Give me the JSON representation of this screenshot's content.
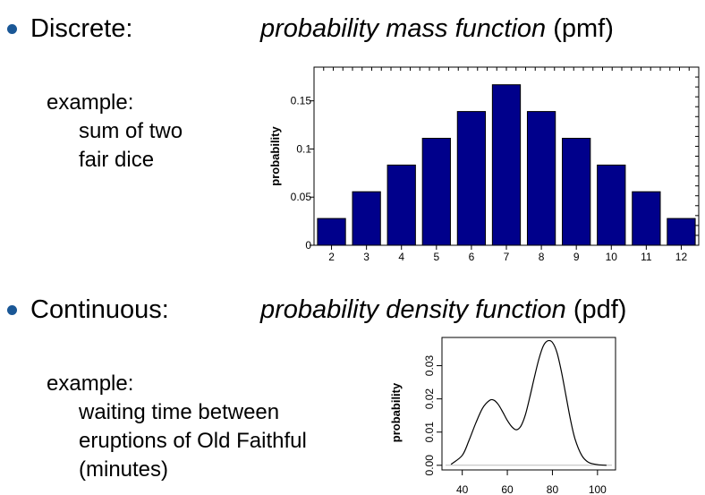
{
  "sections": {
    "discrete": {
      "heading": "Discrete:",
      "function_name": "probability mass function",
      "function_abbr": "(pmf)",
      "example_label": "example:",
      "example_lines": [
        "sum of two",
        "fair dice"
      ]
    },
    "continuous": {
      "heading": "Continuous:",
      "function_name": "probability density function",
      "function_abbr": "(pdf)",
      "example_label": "example:",
      "example_lines": [
        "waiting time between",
        "eruptions of Old Faithful",
        "(minutes)"
      ]
    }
  },
  "colors": {
    "bullet": "#1a5796",
    "bar_fill": "#00008b",
    "line": "#000000"
  },
  "chart_data": [
    {
      "type": "bar",
      "categories": [
        "2",
        "3",
        "4",
        "5",
        "6",
        "7",
        "8",
        "9",
        "10",
        "11",
        "12"
      ],
      "values": [
        0.0278,
        0.0556,
        0.0833,
        0.1111,
        0.1389,
        0.1667,
        0.1389,
        0.1111,
        0.0833,
        0.0556,
        0.0278
      ],
      "xlabel": "",
      "ylabel": "probability",
      "ylim": [
        0,
        0.185
      ],
      "yticks": [
        0,
        0.05,
        0.1,
        0.15
      ],
      "ytick_labels": [
        "0",
        "0.05",
        "0.1",
        "0.15"
      ],
      "grid": false
    },
    {
      "type": "line",
      "x": [
        35,
        40,
        43,
        46,
        49,
        52,
        54,
        56,
        58,
        60,
        62,
        64,
        66,
        68,
        70,
        72,
        74,
        76,
        78,
        80,
        82,
        84,
        86,
        88,
        90,
        93,
        96,
        100,
        104
      ],
      "y": [
        0.0003,
        0.003,
        0.0075,
        0.0127,
        0.0172,
        0.0195,
        0.0196,
        0.0183,
        0.016,
        0.0135,
        0.0116,
        0.0107,
        0.0118,
        0.0152,
        0.0206,
        0.0265,
        0.032,
        0.036,
        0.0375,
        0.037,
        0.034,
        0.0282,
        0.021,
        0.0138,
        0.008,
        0.003,
        0.0009,
        0.0002,
        0.0
      ],
      "xlabel": "",
      "ylabel": "probability",
      "xlim": [
        31,
        108
      ],
      "ylim": [
        -0.0014,
        0.0385
      ],
      "xticks": [
        40,
        60,
        80,
        100
      ],
      "yticks": [
        0.0,
        0.01,
        0.02,
        0.03
      ],
      "ytick_labels": [
        "0.00",
        "0.01",
        "0.02",
        "0.03"
      ],
      "grid": false
    }
  ]
}
